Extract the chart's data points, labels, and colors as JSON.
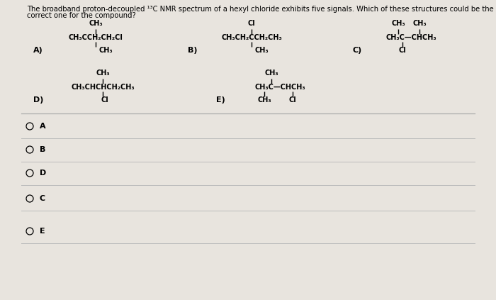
{
  "bg_color": "#e8e4de",
  "title_text": "The broadband proton-decoupled ¹³C NMR spectrum of a hexyl chloride exhibits five signals. Which of these structures could be the correct one for the compound?",
  "title_fontsize": 7.2,
  "radio_options": [
    "A",
    "B",
    "D",
    "C",
    "E"
  ],
  "fs_chem": 7.0,
  "fs_label": 8.0
}
